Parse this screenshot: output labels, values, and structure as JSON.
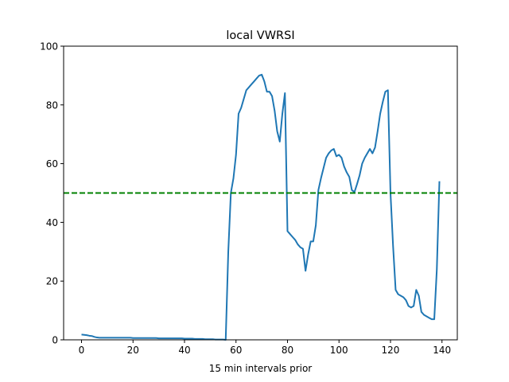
{
  "chart_data": {
    "type": "line",
    "title": "local VWRSI",
    "xlabel": "15 min intervals prior",
    "ylabel": "",
    "xlim": [
      -6.95,
      145.95
    ],
    "ylim": [
      0,
      100
    ],
    "xticks": [
      0,
      20,
      40,
      60,
      80,
      100,
      120,
      140
    ],
    "yticks": [
      0,
      20,
      40,
      60,
      80,
      100
    ],
    "grid": false,
    "series": [
      {
        "name": "local VWRSI",
        "color": "#1f77b4",
        "values": [
          1.8,
          1.7,
          1.6,
          1.4,
          1.3,
          1.0,
          0.8,
          0.7,
          0.7,
          0.7,
          0.7,
          0.7,
          0.7,
          0.7,
          0.7,
          0.7,
          0.7,
          0.7,
          0.7,
          0.7,
          0.6,
          0.6,
          0.6,
          0.6,
          0.6,
          0.6,
          0.6,
          0.6,
          0.6,
          0.6,
          0.5,
          0.5,
          0.5,
          0.5,
          0.5,
          0.5,
          0.5,
          0.5,
          0.5,
          0.5,
          0.4,
          0.4,
          0.4,
          0.4,
          0.3,
          0.3,
          0.3,
          0.3,
          0.2,
          0.2,
          0.2,
          0.2,
          0.1,
          0.1,
          0.1,
          0.1,
          0,
          30,
          50,
          55,
          63,
          77,
          79,
          82,
          85,
          86,
          87,
          88,
          89,
          90,
          90.3,
          88,
          84.5,
          84.5,
          83,
          78,
          71,
          67.5,
          77,
          84,
          37,
          36,
          35,
          34,
          32.5,
          31.5,
          31,
          23.5,
          29,
          33.5,
          33.5,
          39,
          51,
          55,
          58.5,
          62,
          63.5,
          64.5,
          65,
          62.5,
          63,
          62,
          59,
          57,
          55.5,
          51,
          50.3,
          53,
          56,
          60,
          62,
          63.5,
          65,
          63.5,
          65.5,
          71,
          77,
          81,
          84.5,
          85,
          50,
          32,
          17,
          15.5,
          15,
          14.5,
          13.5,
          11.5,
          11,
          11.5,
          17,
          15,
          9.5,
          8.5,
          8,
          7.5,
          7,
          7,
          24,
          54
        ]
      }
    ],
    "reference_line": {
      "y": 50,
      "color": "#008000",
      "style": "dashed"
    }
  }
}
